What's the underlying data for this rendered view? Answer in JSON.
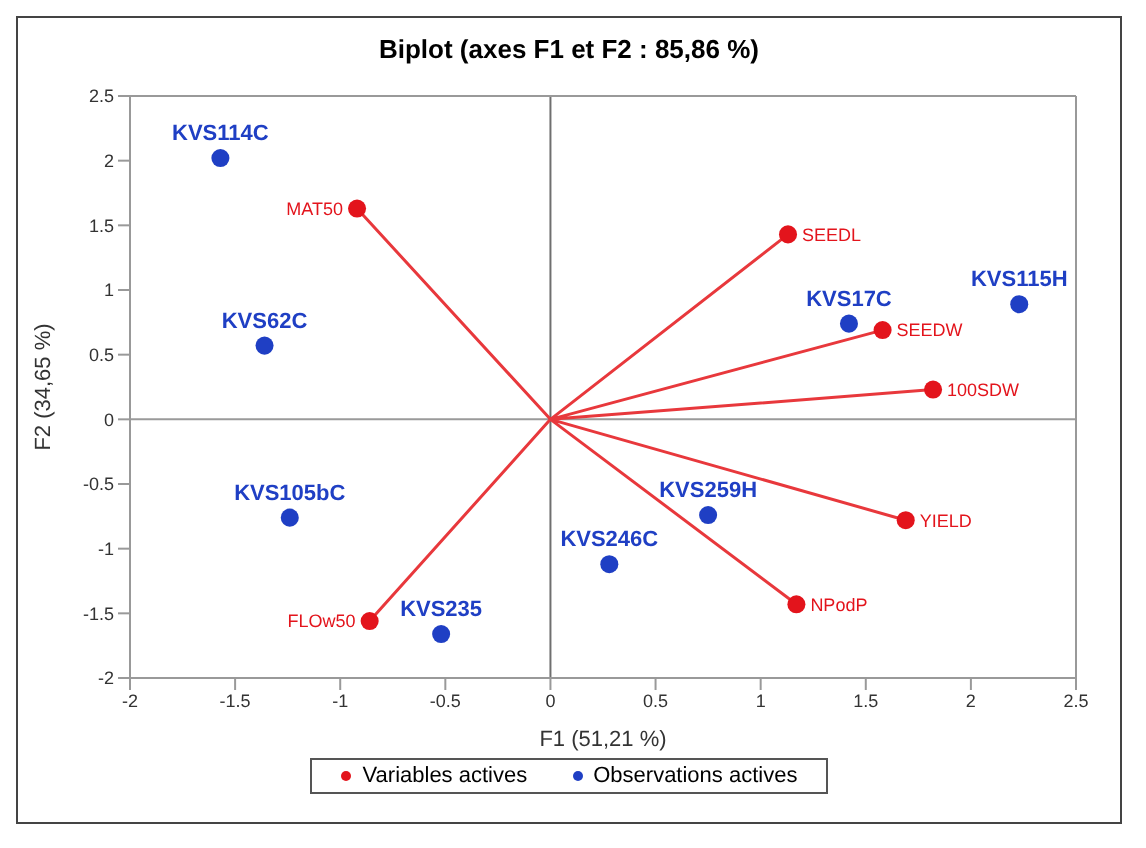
{
  "chart_data": {
    "type": "scatter",
    "title": "Biplot (axes F1 et F2 : 85,86 %)",
    "xlabel": "F1 (51,21 %)",
    "ylabel": "F2 (34,65 %)",
    "xlim": [
      -2,
      2.5
    ],
    "xticks": [
      -2,
      -1.5,
      -1,
      -0.5,
      0,
      0.5,
      1,
      1.5,
      2,
      2.5
    ],
    "ylim": [
      -2,
      2.5
    ],
    "yticks": [
      -2,
      -1.5,
      -1,
      -0.5,
      0,
      0.5,
      1,
      1.5,
      2,
      2.5
    ],
    "legend": "bottom",
    "marker": "circle",
    "ref_lines": [
      {
        "axis": "x",
        "value": 0,
        "color": "#6f6f6f"
      },
      {
        "axis": "y",
        "value": 0,
        "color": "#9a9a9a"
      }
    ],
    "series": [
      {
        "type": "line",
        "marker": "none",
        "color": "#e8383c",
        "x": [
          0,
          -0.92,
          null,
          0,
          1.13,
          null,
          0,
          1.58,
          null,
          0,
          1.82,
          null,
          0,
          1.69,
          null,
          0,
          1.17,
          null,
          0,
          -0.86
        ],
        "values": [
          0,
          1.63,
          null,
          0,
          1.43,
          null,
          0,
          0.69,
          null,
          0,
          0.23,
          null,
          0,
          -0.78,
          null,
          0,
          -1.43,
          null,
          0,
          -1.56
        ]
      },
      {
        "name": "Variables actives",
        "color": "#e3141c",
        "x": [
          -0.92,
          1.13,
          1.58,
          1.82,
          1.69,
          1.17,
          -0.86
        ],
        "values": [
          1.63,
          1.43,
          0.69,
          0.23,
          -0.78,
          -1.43,
          -1.56
        ]
      },
      {
        "name": "Observations actives",
        "color": "#1f3fc4",
        "x": [
          -1.57,
          -1.36,
          -1.24,
          -0.52,
          0.28,
          0.75,
          1.42,
          2.23
        ],
        "values": [
          2.02,
          0.57,
          -0.76,
          -1.66,
          -1.12,
          -0.74,
          0.74,
          0.89
        ]
      }
    ],
    "annotations": [
      {
        "text": "MAT50",
        "x": -0.92,
        "y": 1.63
      },
      {
        "text": "SEEDL",
        "x": 1.13,
        "y": 1.43
      },
      {
        "text": "SEEDW",
        "x": 1.58,
        "y": 0.69
      },
      {
        "text": "100SDW",
        "x": 1.82,
        "y": 0.23
      },
      {
        "text": "YIELD",
        "x": 1.69,
        "y": -0.78
      },
      {
        "text": "NPodP",
        "x": 1.17,
        "y": -1.43
      },
      {
        "text": "FLOw50",
        "x": -0.86,
        "y": -1.56
      },
      {
        "text": "KVS114C",
        "x": -1.57,
        "y": 2.02
      },
      {
        "text": "KVS62C",
        "x": -1.36,
        "y": 0.57
      },
      {
        "text": "KVS105bC",
        "x": -1.24,
        "y": -0.76
      },
      {
        "text": "KVS235",
        "x": -0.52,
        "y": -1.66
      },
      {
        "text": "KVS246C",
        "x": 0.28,
        "y": -1.12
      },
      {
        "text": "KVS259H",
        "x": 0.75,
        "y": -0.74
      },
      {
        "text": "KVS17C",
        "x": 1.42,
        "y": 0.74
      },
      {
        "text": "KVS115H",
        "x": 2.23,
        "y": 0.89
      }
    ]
  }
}
